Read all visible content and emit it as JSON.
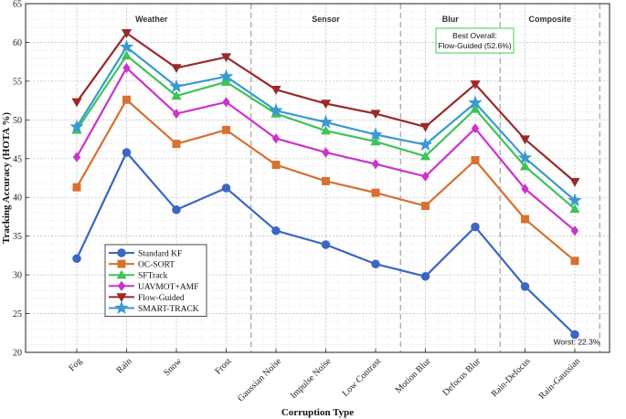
{
  "chart_data": {
    "type": "line",
    "title": "",
    "xlabel": "Corruption Type",
    "ylabel": "Tracking Accuracy (HOTA %)",
    "ylim": [
      20,
      65
    ],
    "yticks": [
      20,
      25,
      30,
      35,
      40,
      45,
      50,
      55,
      60,
      65
    ],
    "grid": true,
    "grid_minor": true,
    "legend_position": "lower-left",
    "categories": [
      "Fog",
      "Rain",
      "Snow",
      "Frost",
      "Gaussian Noise",
      "Impulse Noise",
      "Low Contrast",
      "Motion Blur",
      "Defocus Blur",
      "Rain-Defocus",
      "Rain-Gaussian"
    ],
    "groups": [
      {
        "label": "Weather",
        "from": 0,
        "to": 3
      },
      {
        "label": "Sensor",
        "from": 4,
        "to": 6
      },
      {
        "label": "Blur",
        "from": 7,
        "to": 8
      },
      {
        "label": "Composite",
        "from": 9,
        "to": 10
      }
    ],
    "series": [
      {
        "name": "Standard KF",
        "color": "#3a66c4",
        "marker": "circle",
        "values": [
          32.1,
          45.8,
          38.4,
          41.2,
          35.7,
          33.9,
          31.4,
          29.8,
          36.2,
          28.5,
          22.3
        ]
      },
      {
        "name": "OC-SORT",
        "color": "#d8702f",
        "marker": "square",
        "values": [
          41.3,
          52.6,
          46.9,
          48.7,
          44.2,
          42.1,
          40.6,
          38.9,
          44.8,
          37.2,
          31.8
        ]
      },
      {
        "name": "SFTrack",
        "color": "#3cc45a",
        "marker": "triangle-up",
        "values": [
          48.7,
          58.3,
          53.1,
          54.9,
          50.8,
          48.6,
          47.2,
          45.3,
          51.4,
          44.0,
          38.5
        ]
      },
      {
        "name": "UAVMOT+AMF",
        "color": "#cc33cc",
        "marker": "diamond",
        "values": [
          45.2,
          56.7,
          50.8,
          52.3,
          47.6,
          45.8,
          44.3,
          42.7,
          48.9,
          41.1,
          35.7
        ]
      },
      {
        "name": "Flow-Guided",
        "color": "#9a2a2a",
        "marker": "triangle-down",
        "values": [
          52.3,
          61.2,
          56.7,
          58.1,
          53.9,
          52.1,
          50.8,
          49.1,
          54.6,
          47.5,
          42.0
        ]
      },
      {
        "name": "SMART-TRACK",
        "color": "#3a9ad0",
        "marker": "star",
        "values": [
          49.1,
          59.4,
          54.3,
          55.6,
          51.2,
          49.7,
          48.1,
          46.8,
          52.2,
          45.1,
          39.6
        ]
      }
    ],
    "annotations": [
      {
        "text": "Best Overall:",
        "text2": "Flow-Guided (52.6%)",
        "box_color": "#44cc44"
      },
      {
        "text": "Worst: 22.3%"
      }
    ]
  }
}
